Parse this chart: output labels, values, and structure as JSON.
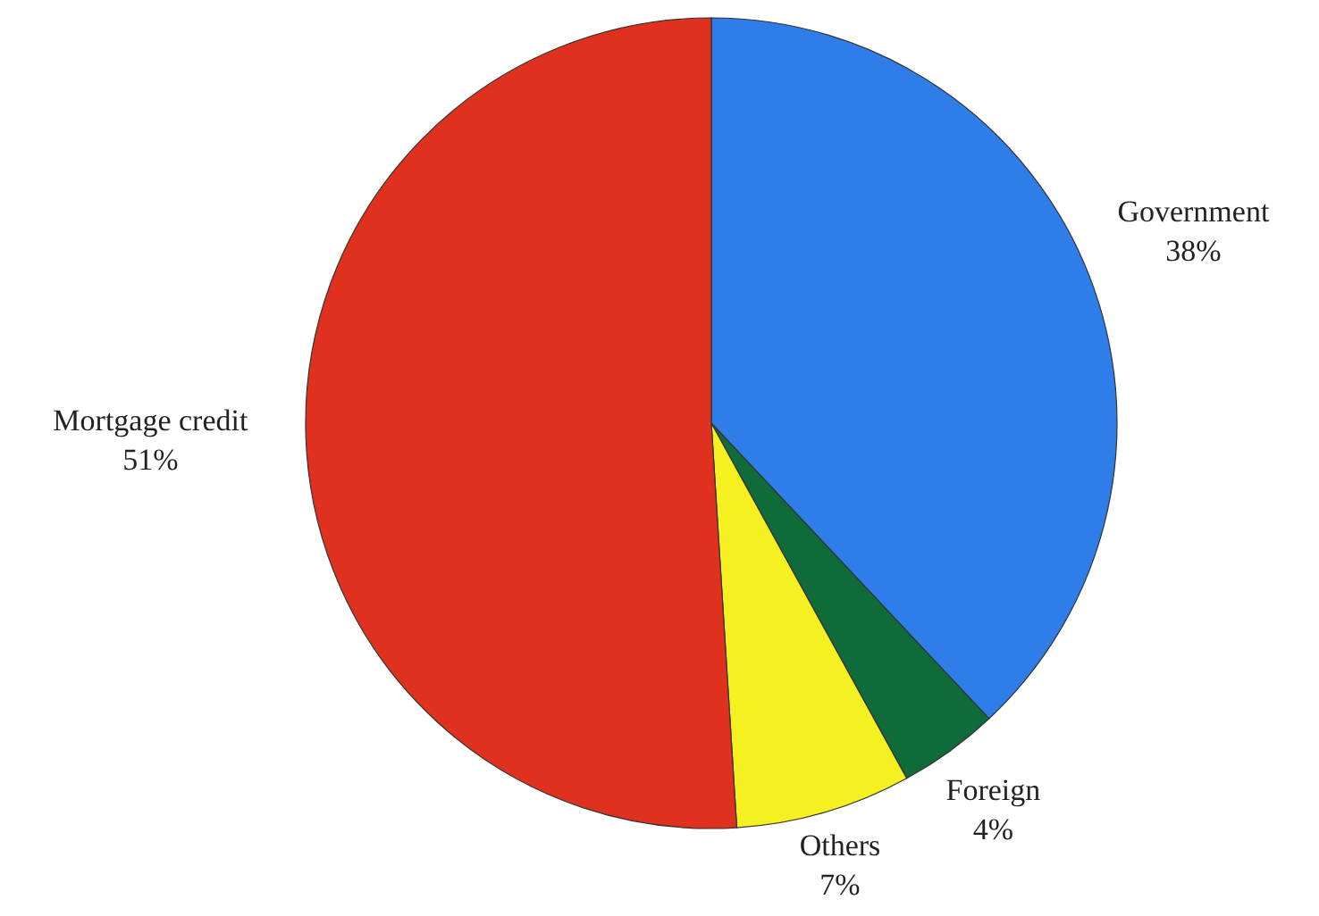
{
  "chart_data": {
    "type": "pie",
    "categories": [
      "Government",
      "Foreign",
      "Others",
      "Mortgage credit"
    ],
    "values": [
      38,
      4,
      7,
      51
    ],
    "colors": [
      "#2f7de8",
      "#0f6b3a",
      "#f5f020",
      "#e0301e"
    ],
    "value_labels": [
      "38%",
      "4%",
      "7%",
      "51%"
    ]
  }
}
